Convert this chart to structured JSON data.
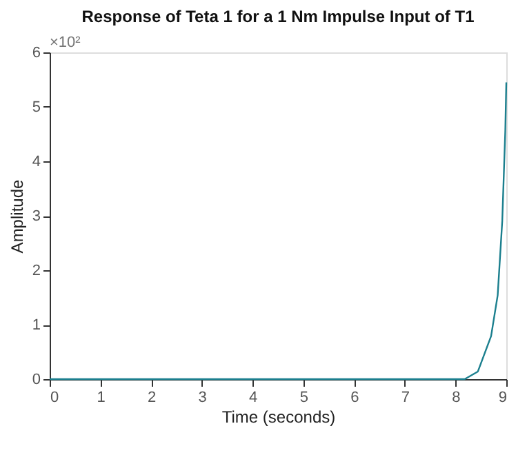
{
  "chart_data": {
    "type": "line",
    "title": "Response of Teta 1 for a 1 Nm Impulse Input of T1",
    "xlabel": "Time (seconds)",
    "ylabel": "Amplitude",
    "annotations": [
      "×10²"
    ],
    "x": [
      0,
      1,
      2,
      3,
      4,
      5,
      6,
      7,
      8,
      8.18,
      8.44,
      8.7,
      8.83,
      8.92,
      8.98,
      9
    ],
    "series": [
      {
        "color": "#1b7f8e",
        "values": [
          0,
          0,
          0,
          0,
          0,
          0,
          0,
          0,
          0,
          0,
          0.14,
          0.79,
          1.54,
          2.9,
          4.56,
          5.45
        ]
      }
    ],
    "xlim": [
      0,
      9
    ],
    "xticks": [
      0,
      1,
      2,
      3,
      4,
      5,
      6,
      7,
      8,
      9
    ],
    "ylim": [
      0,
      6
    ],
    "yticks": [
      0,
      1,
      2,
      3,
      4,
      5,
      6
    ],
    "grid": false,
    "legend": false
  }
}
